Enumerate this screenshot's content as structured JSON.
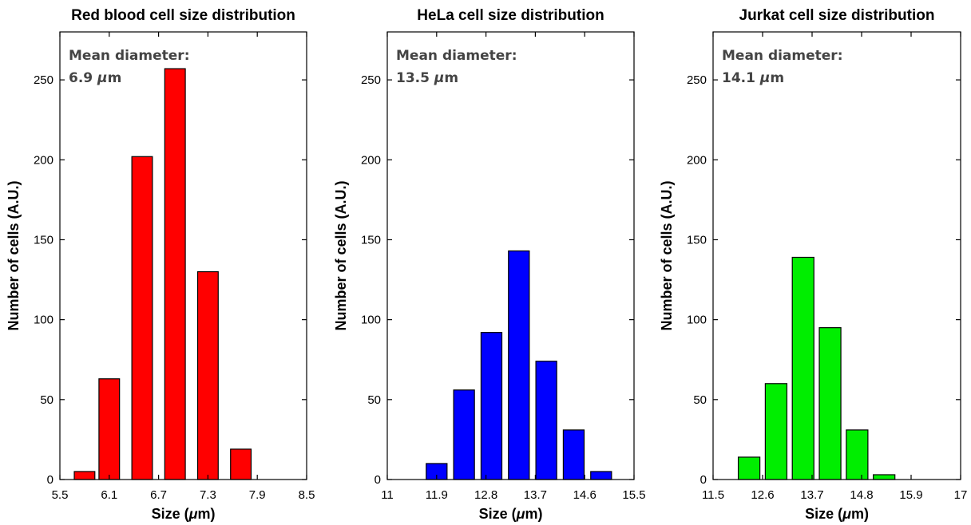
{
  "chart_data": [
    {
      "type": "bar",
      "title": "Red blood cell size distribution",
      "xlabel": "Size (μm)",
      "ylabel": "Number of cells (A.U.)",
      "xlim": [
        5.5,
        8.5
      ],
      "ylim": [
        0,
        280
      ],
      "xticks": [
        "5.5",
        "6.1",
        "6.7",
        "7.3",
        "7.9",
        "8.5"
      ],
      "yticks": [
        "0",
        "50",
        "100",
        "150",
        "200",
        "250"
      ],
      "bar_width": 0.25,
      "color": "#ff0000",
      "bars": [
        {
          "x": 5.8,
          "value": 5
        },
        {
          "x": 6.1,
          "value": 63
        },
        {
          "x": 6.5,
          "value": 202
        },
        {
          "x": 6.9,
          "value": 257
        },
        {
          "x": 7.3,
          "value": 130
        },
        {
          "x": 7.7,
          "value": 19
        }
      ],
      "annotation": {
        "line1": "Mean diameter:",
        "line2": "6.9 μm"
      }
    },
    {
      "type": "bar",
      "title": "HeLa cell size distribution",
      "xlabel": "Size (μm)",
      "ylabel": "Number of cells (A.U.)",
      "xlim": [
        11,
        15.5
      ],
      "ylim": [
        0,
        280
      ],
      "xticks": [
        "11",
        "11.9",
        "12.8",
        "13.7",
        "14.6",
        "15.5"
      ],
      "yticks": [
        "0",
        "50",
        "100",
        "150",
        "200",
        "250"
      ],
      "bar_width": 0.38,
      "color": "#0000ff",
      "bars": [
        {
          "x": 11.9,
          "value": 10
        },
        {
          "x": 12.4,
          "value": 56
        },
        {
          "x": 12.9,
          "value": 92
        },
        {
          "x": 13.4,
          "value": 143
        },
        {
          "x": 13.9,
          "value": 74
        },
        {
          "x": 14.4,
          "value": 31
        },
        {
          "x": 14.9,
          "value": 5
        }
      ],
      "annotation": {
        "line1": "Mean diameter:",
        "line2": "13.5 μm"
      }
    },
    {
      "type": "bar",
      "title": "Jurkat cell size distribution",
      "xlabel": "Size (μm)",
      "ylabel": "Number of cells (A.U.)",
      "xlim": [
        11.5,
        17
      ],
      "ylim": [
        0,
        280
      ],
      "xticks": [
        "11.5",
        "12.6",
        "13.7",
        "14.8",
        "15.9",
        "17"
      ],
      "yticks": [
        "0",
        "50",
        "100",
        "150",
        "200",
        "250"
      ],
      "bar_width": 0.48,
      "color": "#00ee00",
      "bars": [
        {
          "x": 12.3,
          "value": 14
        },
        {
          "x": 12.9,
          "value": 60
        },
        {
          "x": 13.5,
          "value": 139
        },
        {
          "x": 14.1,
          "value": 95
        },
        {
          "x": 14.7,
          "value": 31
        },
        {
          "x": 15.3,
          "value": 3
        }
      ],
      "annotation": {
        "line1": "Mean diameter:",
        "line2": "14.1 μm"
      }
    }
  ]
}
